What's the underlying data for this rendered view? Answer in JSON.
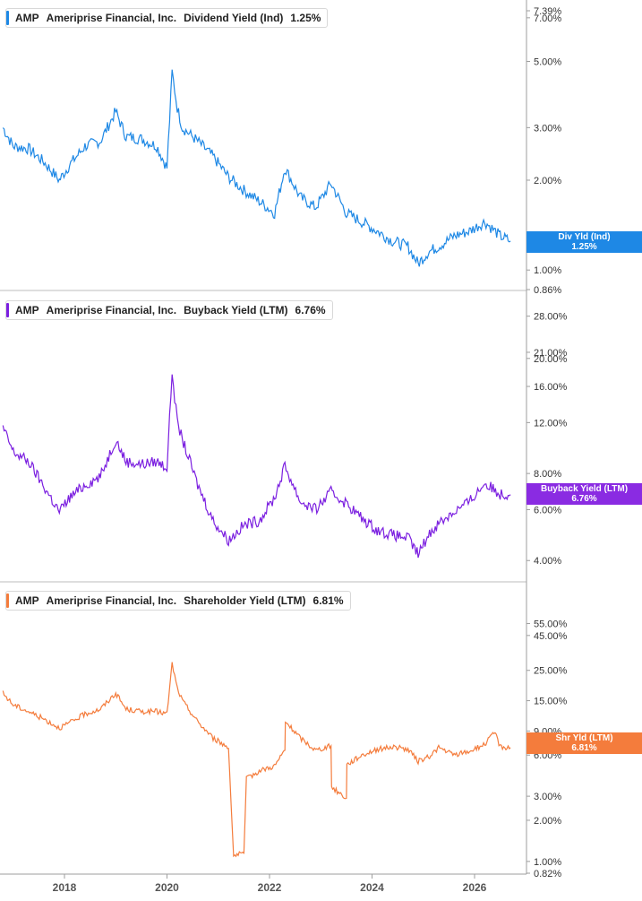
{
  "chart_data": [
    {
      "type": "line",
      "ticker": "AMP",
      "company": "Ameriprise Financial, Inc.",
      "metric": "Dividend Yield (Ind)",
      "current": "1.25%",
      "tag": {
        "label": "Div Yld (Ind)",
        "value": "1.25%"
      },
      "color": "#1e88e5",
      "scale": "log",
      "ylim": [
        0.86,
        7.39
      ],
      "yticks": [
        "7.39%",
        "7.00%",
        "5.00%",
        "3.00%",
        "2.00%",
        "1.00%",
        "0.86%"
      ],
      "x": [
        2016.8,
        2017.0,
        2017.3,
        2017.6,
        2017.9,
        2018.1,
        2018.4,
        2018.7,
        2019.0,
        2019.2,
        2019.5,
        2019.8,
        2020.0,
        2020.1,
        2020.2,
        2020.3,
        2020.6,
        2020.9,
        2021.2,
        2021.5,
        2021.8,
        2022.1,
        2022.3,
        2022.6,
        2022.9,
        2023.2,
        2023.5,
        2023.8,
        2024.1,
        2024.4,
        2024.7,
        2024.9,
        2025.1,
        2025.3,
        2025.6,
        2025.9,
        2026.2,
        2026.5,
        2026.7
      ],
      "y": [
        3.0,
        2.6,
        2.55,
        2.3,
        2.0,
        2.25,
        2.6,
        2.7,
        3.4,
        2.8,
        2.75,
        2.6,
        2.2,
        4.6,
        3.5,
        3.0,
        2.7,
        2.4,
        2.05,
        1.85,
        1.7,
        1.55,
        2.2,
        1.75,
        1.62,
        1.95,
        1.55,
        1.45,
        1.35,
        1.25,
        1.2,
        1.05,
        1.15,
        1.2,
        1.3,
        1.35,
        1.45,
        1.3,
        1.25
      ]
    },
    {
      "type": "line",
      "ticker": "AMP",
      "company": "Ameriprise Financial, Inc.",
      "metric": "Buyback Yield (LTM)",
      "current": "6.76%",
      "tag": {
        "label": "Buyback Yield (LTM)",
        "value": "6.76%"
      },
      "color": "#7b1fe0",
      "scale": "log",
      "ylim": [
        3.6,
        30.0
      ],
      "yticks": [
        "28.00%",
        "21.00%",
        "20.00%",
        "16.00%",
        "12.00%",
        "8.00%",
        "6.00%",
        "4.00%"
      ],
      "x": [
        2016.8,
        2017.0,
        2017.3,
        2017.6,
        2017.9,
        2018.1,
        2018.4,
        2018.7,
        2019.0,
        2019.2,
        2019.5,
        2019.8,
        2020.0,
        2020.1,
        2020.2,
        2020.3,
        2020.6,
        2020.9,
        2021.2,
        2021.5,
        2021.8,
        2022.1,
        2022.3,
        2022.6,
        2022.9,
        2023.2,
        2023.5,
        2023.8,
        2024.1,
        2024.4,
        2024.7,
        2024.9,
        2025.1,
        2025.3,
        2025.6,
        2025.9,
        2026.2,
        2026.5,
        2026.7
      ],
      "y": [
        11.5,
        9.5,
        8.8,
        7.2,
        5.9,
        6.6,
        7.3,
        7.8,
        10.5,
        8.8,
        8.6,
        8.8,
        8.4,
        18.0,
        12.0,
        10.5,
        7.3,
        5.5,
        4.7,
        5.3,
        5.5,
        6.6,
        8.5,
        6.4,
        6.0,
        6.9,
        6.3,
        5.6,
        5.1,
        4.9,
        4.8,
        4.2,
        4.9,
        5.4,
        5.9,
        6.4,
        7.4,
        6.8,
        6.76
      ]
    },
    {
      "type": "line",
      "ticker": "AMP",
      "company": "Ameriprise Financial, Inc.",
      "metric": "Shareholder Yield (LTM)",
      "current": "6.81%",
      "tag": {
        "label": "Shr Yld (LTM)",
        "value": "6.81%"
      },
      "color": "#f47c3c",
      "scale": "log",
      "ylim": [
        0.82,
        75.0
      ],
      "yticks": [
        "55.00%",
        "45.00%",
        "25.00%",
        "15.00%",
        "9.00%",
        "6.00%",
        "3.00%",
        "2.00%",
        "1.00%",
        "0.82%"
      ],
      "x": [
        2016.8,
        2017.0,
        2017.3,
        2017.6,
        2017.9,
        2018.1,
        2018.4,
        2018.7,
        2019.0,
        2019.2,
        2019.5,
        2019.8,
        2020.0,
        2020.1,
        2020.2,
        2020.3,
        2020.6,
        2020.9,
        2021.2,
        2021.3,
        2021.5,
        2021.55,
        2021.8,
        2022.1,
        2022.3,
        2022.31,
        2022.6,
        2022.9,
        2023.2,
        2023.21,
        2023.5,
        2023.51,
        2023.8,
        2024.1,
        2024.4,
        2024.7,
        2024.9,
        2025.1,
        2025.3,
        2025.6,
        2025.9,
        2026.2,
        2026.4,
        2026.5,
        2026.7
      ],
      "y": [
        17.0,
        14.0,
        12.5,
        11.0,
        9.5,
        10.3,
        12.0,
        13.0,
        17.0,
        13.0,
        12.5,
        12.5,
        12.0,
        28.0,
        18.5,
        15.0,
        10.5,
        8.0,
        6.8,
        1.1,
        1.15,
        4.0,
        4.6,
        5.0,
        6.5,
        10.5,
        8.0,
        6.5,
        7.0,
        3.5,
        2.9,
        5.1,
        6.0,
        6.6,
        6.9,
        6.6,
        5.4,
        5.8,
        6.8,
        6.0,
        6.4,
        7.2,
        8.8,
        6.9,
        6.81
      ]
    }
  ],
  "x_axis": {
    "ticks": [
      "2018",
      "2020",
      "2022",
      "2024",
      "2026"
    ]
  }
}
